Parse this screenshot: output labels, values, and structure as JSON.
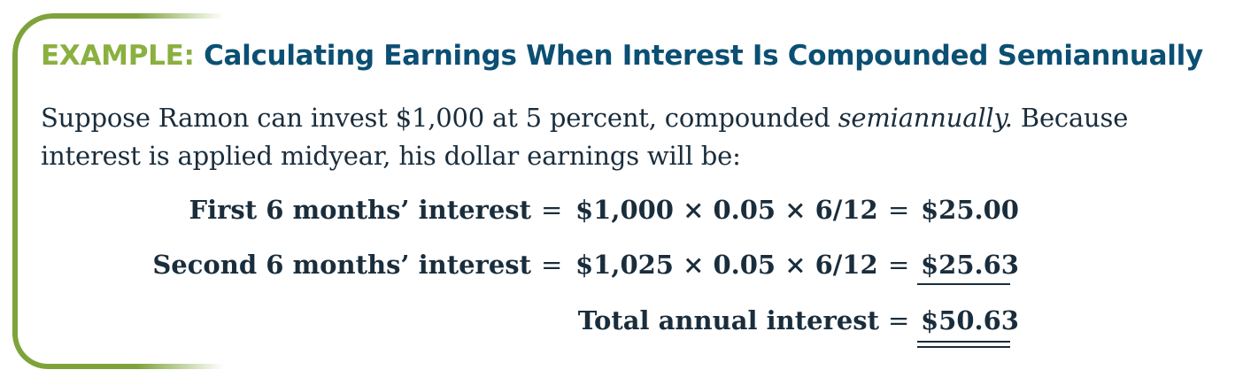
{
  "example": {
    "label": "EXAMPLE:",
    "title": "Calculating Earnings When Interest Is Compounded Semiannually",
    "intro_part1": "Suppose Ramon can invest $1,000 at 5 percent, compounded ",
    "intro_emphasis": "semiannually.",
    "intro_part2": " Because interest is applied midyear, his dollar earnings will be:"
  },
  "calculation": {
    "rows": [
      {
        "label": "First 6 months’ interest",
        "equals": "=",
        "expression": "$1,000 × 0.05 × 6/12",
        "equals2": "=",
        "result": "$25.00"
      },
      {
        "label": "Second 6 months’ interest",
        "equals": "=",
        "expression": "$1,025 × 0.05 × 6/12",
        "equals2": "=",
        "result": "$25.63"
      },
      {
        "label": "Total annual interest",
        "equals": "=",
        "result": "$50.63"
      }
    ]
  },
  "colors": {
    "accent_green": "#7ea33a",
    "title_blue": "#0b4f73",
    "text": "#1a2d3c"
  }
}
